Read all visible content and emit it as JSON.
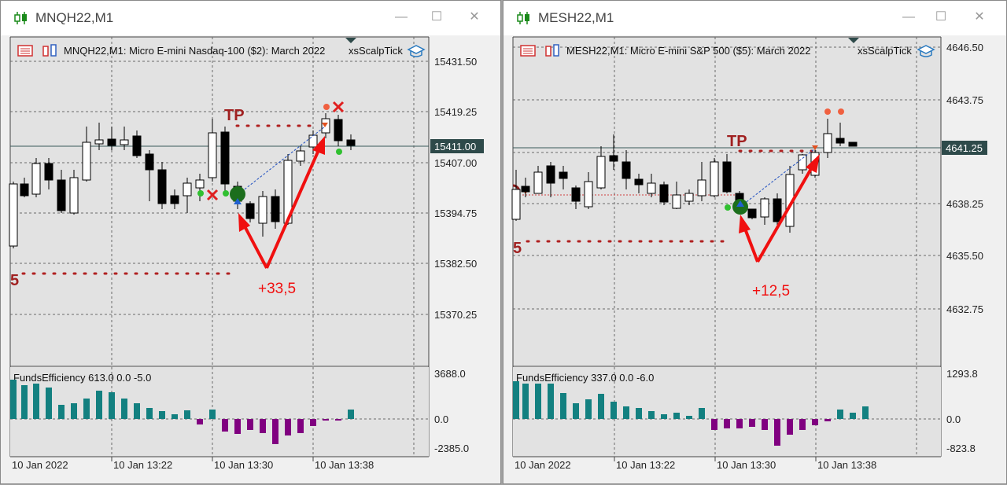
{
  "windows": [
    {
      "id": "w1",
      "title": "MNQH22,M1",
      "header_text": "MNQH22,M1:  Micro E-mini Nasdaq-100 ($2): March 2022",
      "indicator_name": "xsScalpTick",
      "price_labels": [
        "15431.50",
        "15419.25",
        "15407.00",
        "15394.75",
        "15382.50",
        "15370.25"
      ],
      "current_price": "15411.00",
      "tp_label": "TP",
      "profit_label": "+33,5",
      "sub_header": "FundsEfficiency 613.0 0.0 -5.0",
      "sub_labels": [
        "3688.0",
        "0.0",
        "-2385.0"
      ],
      "time_labels": [
        "10 Jan 2022",
        "10 Jan 13:22",
        "10 Jan 13:30",
        "10 Jan 13:38"
      ]
    },
    {
      "id": "w2",
      "title": "MESH22,M1",
      "header_text": "MESH22,M1:  Micro E-mini S&P 500 ($5): March 2022",
      "indicator_name": "xsScalpTick",
      "price_labels": [
        "4646.50",
        "4643.75",
        "4638.25",
        "4635.50",
        "4632.75"
      ],
      "current_price": "4641.25",
      "tp_label": "TP",
      "profit_label": "+12,5",
      "sub_header": "FundsEfficiency 337.0 0.0 -6.0",
      "sub_labels": [
        "1293.8",
        "0.0",
        "-823.8"
      ],
      "time_labels": [
        "10 Jan 2022",
        "10 Jan 13:22",
        "10 Jan 13:30",
        "10 Jan 13:38"
      ]
    }
  ],
  "window_controls": {
    "minimize": "—",
    "maximize": "☐",
    "close": "✕"
  },
  "colors": {
    "hist_pos": "#138080",
    "hist_neg": "#800080",
    "tp_line": "#b02020",
    "arrow": "#f01010",
    "buy_marker": "#1c6e1c",
    "current_price_bg": "#2e4a4a"
  }
}
